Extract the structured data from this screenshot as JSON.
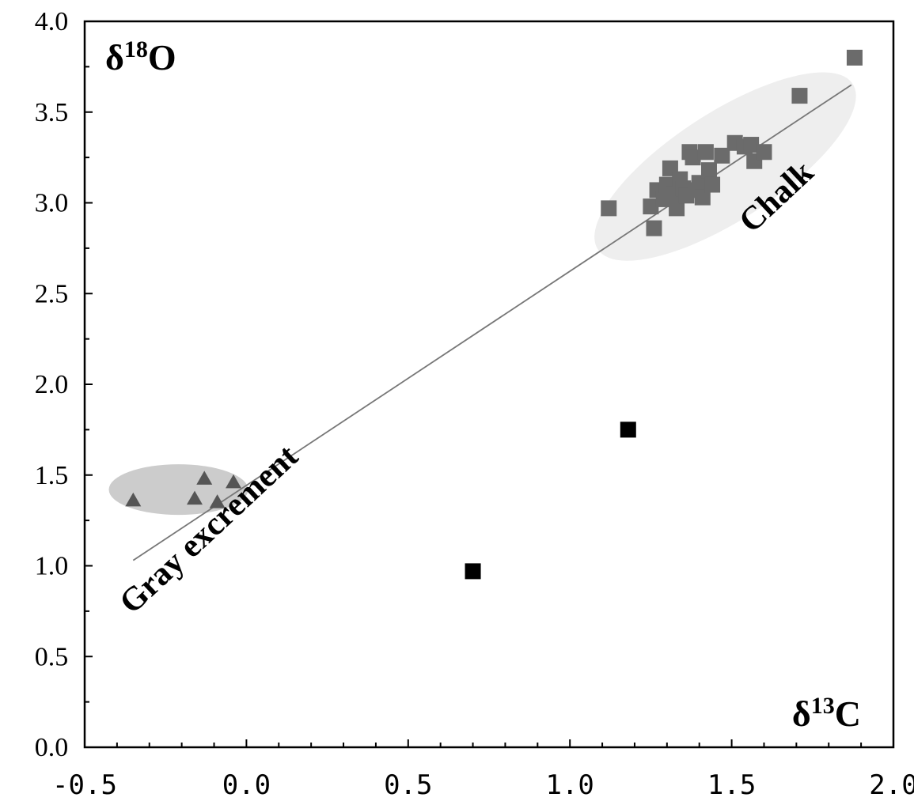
{
  "chart_data": {
    "type": "scatter",
    "xlim": [
      -0.5,
      2.0
    ],
    "ylim": [
      0.0,
      4.0
    ],
    "x_ticks": [
      -0.5,
      0.0,
      0.5,
      1.0,
      1.5,
      2.0
    ],
    "x_tick_labels": [
      "-0.5",
      "0.0",
      "0.5",
      "1.0",
      "1.5",
      "2.0"
    ],
    "y_ticks": [
      0.0,
      0.5,
      1.0,
      1.5,
      2.0,
      2.5,
      3.0,
      3.5,
      4.0
    ],
    "y_tick_labels": [
      "0.0",
      "0.5",
      "1.0",
      "1.5",
      "2.0",
      "2.5",
      "3.0",
      "3.5",
      "4.0"
    ],
    "grid": false,
    "y_axis_title": {
      "symbol": "δ",
      "superscript": "18",
      "element": "O"
    },
    "x_axis_title": {
      "symbol": "δ",
      "superscript": "13",
      "element": "C"
    },
    "series": [
      {
        "marker": "triangle",
        "color": "#555555",
        "label": "Gray excrement",
        "points": [
          [
            -0.35,
            1.36
          ],
          [
            -0.16,
            1.37
          ],
          [
            -0.13,
            1.48
          ],
          [
            -0.09,
            1.35
          ],
          [
            -0.04,
            1.46
          ]
        ]
      },
      {
        "marker": "square",
        "color": "#6b6b6b",
        "label": "Chalk",
        "points": [
          [
            1.12,
            2.97
          ],
          [
            1.25,
            2.98
          ],
          [
            1.26,
            2.86
          ],
          [
            1.27,
            3.07
          ],
          [
            1.29,
            3.02
          ],
          [
            1.3,
            3.1
          ],
          [
            1.31,
            3.19
          ],
          [
            1.32,
            3.05
          ],
          [
            1.33,
            2.97
          ],
          [
            1.34,
            3.13
          ],
          [
            1.35,
            3.08
          ],
          [
            1.36,
            3.04
          ],
          [
            1.37,
            3.28
          ],
          [
            1.38,
            3.25
          ],
          [
            1.39,
            3.07
          ],
          [
            1.4,
            3.11
          ],
          [
            1.41,
            3.03
          ],
          [
            1.42,
            3.28
          ],
          [
            1.43,
            3.18
          ],
          [
            1.44,
            3.1
          ],
          [
            1.47,
            3.26
          ],
          [
            1.51,
            3.33
          ],
          [
            1.54,
            3.31
          ],
          [
            1.56,
            3.32
          ],
          [
            1.57,
            3.23
          ],
          [
            1.6,
            3.28
          ],
          [
            1.71,
            3.59
          ],
          [
            1.88,
            3.8
          ]
        ]
      },
      {
        "marker": "square",
        "color": "#000000",
        "points": [
          [
            0.7,
            0.97
          ],
          [
            1.18,
            1.75
          ]
        ]
      }
    ],
    "trend_line": {
      "from": [
        -0.35,
        1.03
      ],
      "to": [
        1.87,
        3.65
      ],
      "color": "#777777"
    },
    "clusters": [
      {
        "label": "Gray excrement",
        "center": [
          -0.21,
          1.42
        ],
        "color": "#cccccc"
      },
      {
        "label": "Chalk",
        "center": [
          1.48,
          3.2
        ],
        "color": "#eeeeee"
      }
    ],
    "annotations": [
      "Gray excrement",
      "Chalk"
    ]
  }
}
